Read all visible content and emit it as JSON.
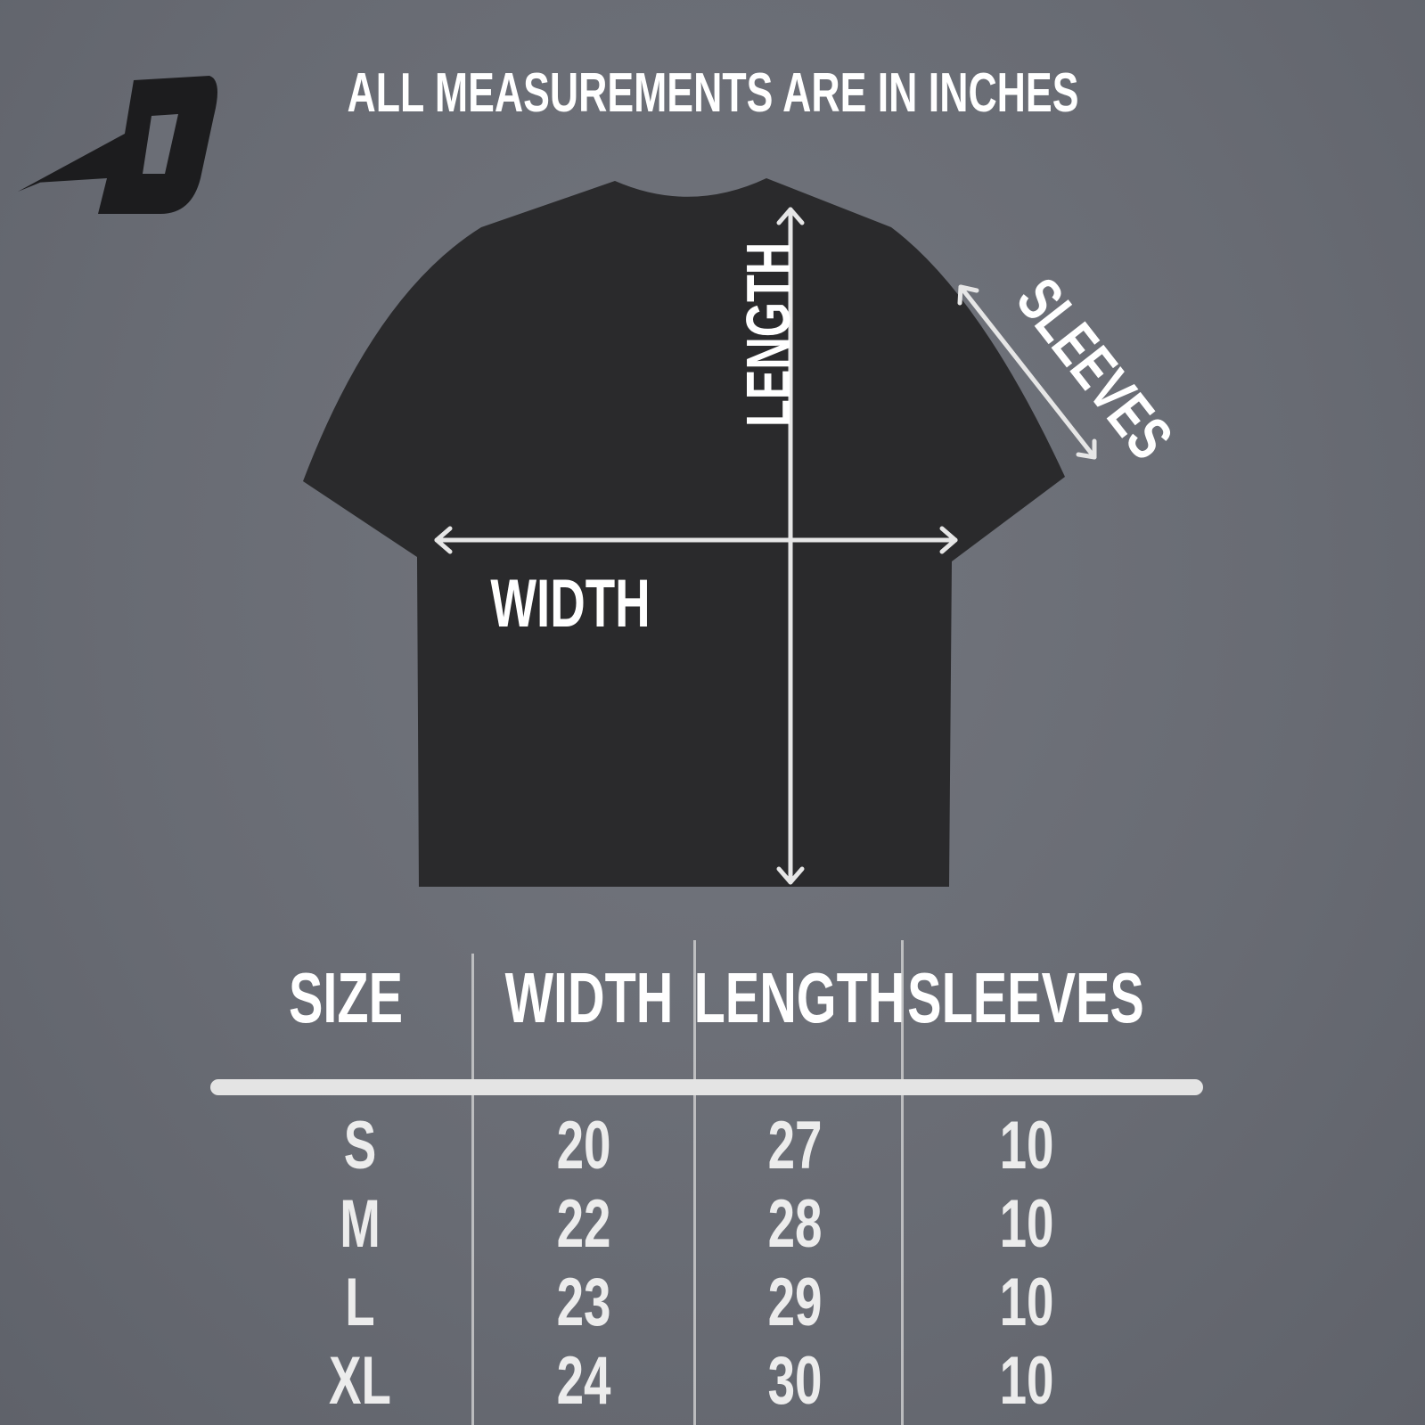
{
  "title": "ALL MEASUREMENTS ARE IN INCHES",
  "logo": {
    "text": "D"
  },
  "diagram_labels": {
    "length": "LENGTH",
    "width": "WIDTH",
    "sleeves": "SLEEVES"
  },
  "colors": {
    "background": "#6b6e76",
    "shirt": "#2a2a2c",
    "text": "#ffffff"
  },
  "table": {
    "headers": [
      "SIZE",
      "WIDTH",
      "LENGTH",
      "SLEEVES"
    ],
    "rows": [
      [
        "S",
        "20",
        "27",
        "10"
      ],
      [
        "M",
        "22",
        "28",
        "10"
      ],
      [
        "L",
        "23",
        "29",
        "10"
      ],
      [
        "XL",
        "24",
        "30",
        "10"
      ]
    ]
  }
}
